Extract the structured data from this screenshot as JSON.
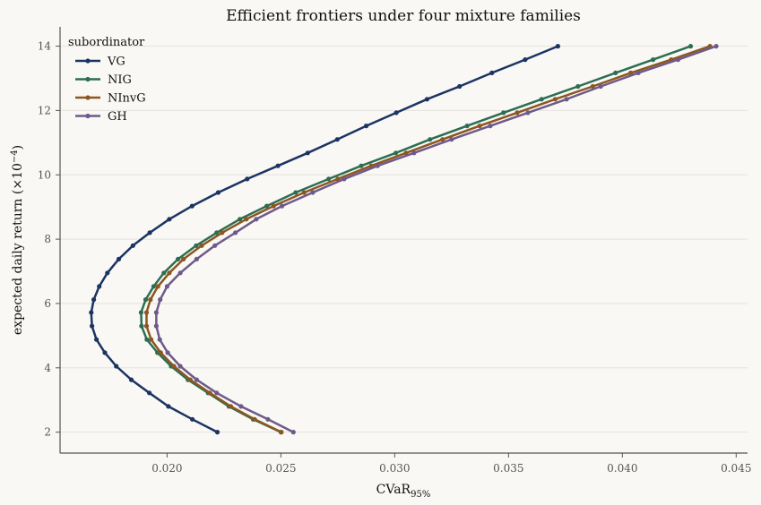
{
  "chart_data": {
    "type": "line",
    "title": "Efficient frontiers under four mixture families",
    "xlabel": "CVaR",
    "xlabel_sub": "95%",
    "ylabel": "expected daily return (×10",
    "ylabel_sup": "−4",
    "ylabel_end": ")",
    "xlim": [
      0.0153,
      0.0455
    ],
    "ylim": [
      1.35,
      14.6
    ],
    "xticks": [
      0.02,
      0.025,
      0.03,
      0.035,
      0.04,
      0.045
    ],
    "xtick_labels": [
      "0.020",
      "0.025",
      "0.030",
      "0.035",
      "0.040",
      "0.045"
    ],
    "yticks": [
      2,
      4,
      6,
      8,
      10,
      12,
      14
    ],
    "ytick_labels": [
      "2",
      "4",
      "6",
      "8",
      "10",
      "12",
      "14"
    ],
    "grid": "y",
    "legend": {
      "title": "subordinator",
      "placement": "top-left"
    },
    "series": [
      {
        "name": "VG",
        "color": "#1c3461",
        "points": [
          [
            0.02221,
            2.0
          ],
          [
            0.02111,
            2.4
          ],
          [
            0.02006,
            2.8
          ],
          [
            0.01922,
            3.22
          ],
          [
            0.01843,
            3.63
          ],
          [
            0.01777,
            4.05
          ],
          [
            0.01727,
            4.47
          ],
          [
            0.0169,
            4.88
          ],
          [
            0.0167,
            5.3
          ],
          [
            0.01667,
            5.72
          ],
          [
            0.01678,
            6.12
          ],
          [
            0.01702,
            6.53
          ],
          [
            0.01738,
            6.95
          ],
          [
            0.01788,
            7.38
          ],
          [
            0.0185,
            7.8
          ],
          [
            0.01924,
            8.2
          ],
          [
            0.0201,
            8.62
          ],
          [
            0.0211,
            9.03
          ],
          [
            0.02225,
            9.45
          ],
          [
            0.02352,
            9.87
          ],
          [
            0.02487,
            10.28
          ],
          [
            0.02618,
            10.68
          ],
          [
            0.02748,
            11.1
          ],
          [
            0.02875,
            11.52
          ],
          [
            0.03007,
            11.93
          ],
          [
            0.03142,
            12.35
          ],
          [
            0.03285,
            12.75
          ],
          [
            0.03427,
            13.17
          ],
          [
            0.03573,
            13.58
          ],
          [
            0.03717,
            14.0
          ]
        ]
      },
      {
        "name": "NIG",
        "color": "#2d6e52",
        "points": [
          [
            0.025,
            2.0
          ],
          [
            0.02378,
            2.4
          ],
          [
            0.02272,
            2.8
          ],
          [
            0.0218,
            3.22
          ],
          [
            0.02092,
            3.63
          ],
          [
            0.02018,
            4.05
          ],
          [
            0.01958,
            4.47
          ],
          [
            0.01911,
            4.88
          ],
          [
            0.01888,
            5.3
          ],
          [
            0.01886,
            5.72
          ],
          [
            0.01906,
            6.12
          ],
          [
            0.01941,
            6.53
          ],
          [
            0.01986,
            6.95
          ],
          [
            0.02048,
            7.38
          ],
          [
            0.02128,
            7.8
          ],
          [
            0.02218,
            8.2
          ],
          [
            0.0232,
            8.62
          ],
          [
            0.02438,
            9.03
          ],
          [
            0.02565,
            9.45
          ],
          [
            0.0271,
            9.87
          ],
          [
            0.02853,
            10.28
          ],
          [
            0.03005,
            10.68
          ],
          [
            0.03155,
            11.1
          ],
          [
            0.03318,
            11.52
          ],
          [
            0.03478,
            11.93
          ],
          [
            0.03645,
            12.35
          ],
          [
            0.03805,
            12.75
          ],
          [
            0.0397,
            13.17
          ],
          [
            0.04135,
            13.58
          ],
          [
            0.043,
            14.0
          ]
        ]
      },
      {
        "name": "NInvG",
        "color": "#8c5621",
        "points": [
          [
            0.02502,
            2.0
          ],
          [
            0.02385,
            2.4
          ],
          [
            0.0228,
            2.8
          ],
          [
            0.02188,
            3.22
          ],
          [
            0.02102,
            3.63
          ],
          [
            0.0203,
            4.05
          ],
          [
            0.01972,
            4.47
          ],
          [
            0.0193,
            4.88
          ],
          [
            0.0191,
            5.3
          ],
          [
            0.0191,
            5.72
          ],
          [
            0.01927,
            6.12
          ],
          [
            0.0196,
            6.53
          ],
          [
            0.0201,
            6.95
          ],
          [
            0.02072,
            7.38
          ],
          [
            0.02152,
            7.8
          ],
          [
            0.02242,
            8.2
          ],
          [
            0.02348,
            8.62
          ],
          [
            0.02468,
            9.03
          ],
          [
            0.02602,
            9.45
          ],
          [
            0.0275,
            9.87
          ],
          [
            0.02897,
            10.28
          ],
          [
            0.0305,
            10.68
          ],
          [
            0.0321,
            11.1
          ],
          [
            0.03373,
            11.52
          ],
          [
            0.03538,
            11.93
          ],
          [
            0.03705,
            12.35
          ],
          [
            0.0387,
            12.75
          ],
          [
            0.04037,
            13.17
          ],
          [
            0.04215,
            13.58
          ],
          [
            0.04385,
            14.0
          ]
        ]
      },
      {
        "name": "GH",
        "color": "#6e5a8a",
        "points": [
          [
            0.02555,
            2.0
          ],
          [
            0.02443,
            2.4
          ],
          [
            0.02325,
            2.8
          ],
          [
            0.02218,
            3.22
          ],
          [
            0.0213,
            3.63
          ],
          [
            0.02058,
            4.05
          ],
          [
            0.02003,
            4.47
          ],
          [
            0.01968,
            4.88
          ],
          [
            0.01953,
            5.3
          ],
          [
            0.01953,
            5.72
          ],
          [
            0.0197,
            6.12
          ],
          [
            0.02,
            6.53
          ],
          [
            0.02058,
            6.95
          ],
          [
            0.0213,
            7.38
          ],
          [
            0.0221,
            7.8
          ],
          [
            0.023,
            8.2
          ],
          [
            0.02392,
            8.62
          ],
          [
            0.02505,
            9.03
          ],
          [
            0.0264,
            9.45
          ],
          [
            0.02778,
            9.87
          ],
          [
            0.02925,
            10.28
          ],
          [
            0.03085,
            10.68
          ],
          [
            0.0325,
            11.1
          ],
          [
            0.0342,
            11.52
          ],
          [
            0.03585,
            11.93
          ],
          [
            0.03755,
            12.35
          ],
          [
            0.03905,
            12.75
          ],
          [
            0.0407,
            13.17
          ],
          [
            0.04245,
            13.58
          ],
          [
            0.04412,
            14.0
          ]
        ]
      }
    ]
  }
}
